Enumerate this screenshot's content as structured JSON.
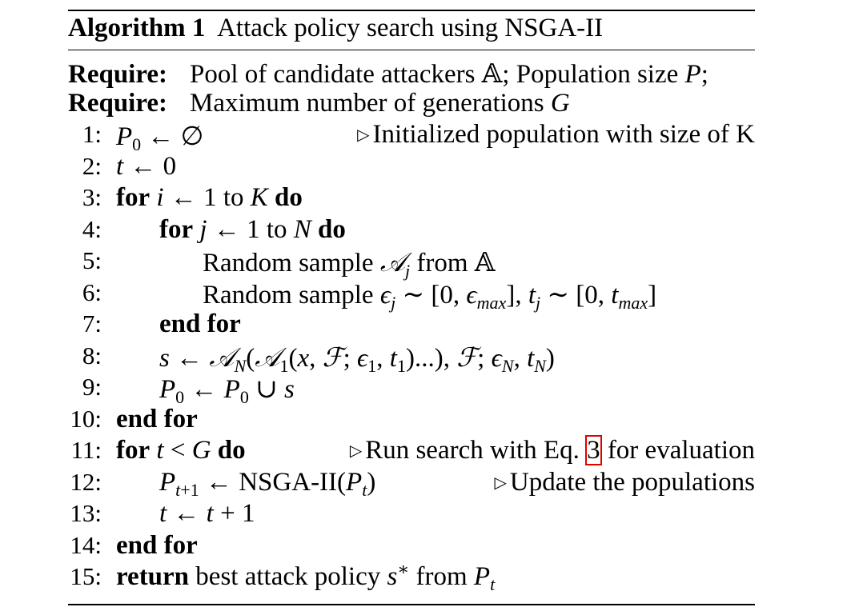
{
  "algorithm": {
    "label": "Algorithm 1",
    "title": "Attack policy search using NSGA-II"
  },
  "require": [
    {
      "keyword": "Require:",
      "text": "Pool of candidate attackers 𝔸; Population size P;"
    },
    {
      "keyword": "Require:",
      "text": "Maximum number of generations G"
    }
  ],
  "lines": [
    {
      "num": "1:",
      "comment": "Initialized population with size of K"
    },
    {
      "num": "2:"
    },
    {
      "num": "3:"
    },
    {
      "num": "4:"
    },
    {
      "num": "5:"
    },
    {
      "num": "6:"
    },
    {
      "num": "7:"
    },
    {
      "num": "8:"
    },
    {
      "num": "9:"
    },
    {
      "num": "10:"
    },
    {
      "num": "11:",
      "comment_pre": "Run search with Eq.",
      "comment_ref": "3",
      "comment_post": "for evaluation"
    },
    {
      "num": "12:",
      "comment": "Update the populations"
    },
    {
      "num": "13:"
    },
    {
      "num": "14:"
    },
    {
      "num": "15:"
    }
  ],
  "keywords": {
    "for": "for",
    "to": "to",
    "do": "do",
    "end_for": "end for",
    "return": "return"
  },
  "text": {
    "random_sample": "Random sample",
    "from": "from",
    "nsga": "NSGA-II",
    "best_policy": "best attack policy"
  }
}
